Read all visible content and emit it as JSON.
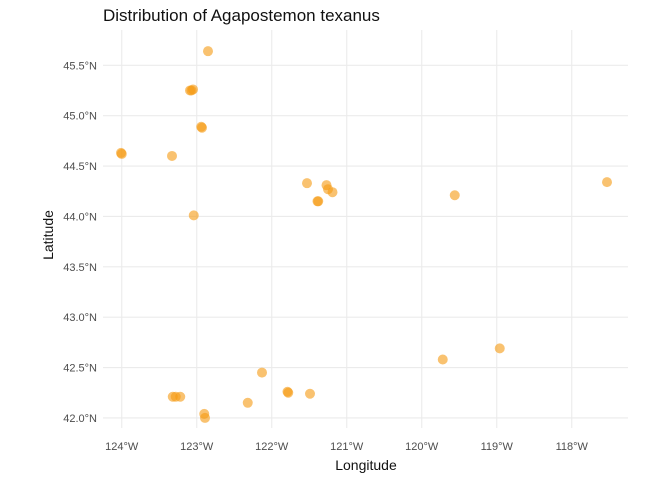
{
  "chart_data": {
    "type": "scatter",
    "title": "Distribution of Agapostemon texanus",
    "xlabel": "Longitude",
    "ylabel": "Latitude",
    "xlim": [
      -124.25,
      -117.25
    ],
    "ylim": [
      41.9,
      45.85
    ],
    "x_ticks": [
      {
        "value": -124,
        "label": "124°W"
      },
      {
        "value": -123,
        "label": "123°W"
      },
      {
        "value": -122,
        "label": "122°W"
      },
      {
        "value": -121,
        "label": "121°W"
      },
      {
        "value": -120,
        "label": "120°W"
      },
      {
        "value": -119,
        "label": "119°W"
      },
      {
        "value": -118,
        "label": "118°W"
      }
    ],
    "y_ticks": [
      {
        "value": 42.0,
        "label": "42.0°N"
      },
      {
        "value": 42.5,
        "label": "42.5°N"
      },
      {
        "value": 43.0,
        "label": "43.0°N"
      },
      {
        "value": 43.5,
        "label": "43.5°N"
      },
      {
        "value": 44.0,
        "label": "44.0°N"
      },
      {
        "value": 44.5,
        "label": "44.5°N"
      },
      {
        "value": 45.0,
        "label": "45.0°N"
      },
      {
        "value": 45.5,
        "label": "45.5°N"
      }
    ],
    "grid": true,
    "legend": "none",
    "color": "#f59a10",
    "points": [
      {
        "x": -122.85,
        "y": 45.64
      },
      {
        "x": -123.09,
        "y": 45.25
      },
      {
        "x": -123.05,
        "y": 45.26
      },
      {
        "x": -123.07,
        "y": 45.25
      },
      {
        "x": -122.94,
        "y": 44.89
      },
      {
        "x": -122.93,
        "y": 44.88
      },
      {
        "x": -124.0,
        "y": 44.62
      },
      {
        "x": -124.01,
        "y": 44.63
      },
      {
        "x": -123.33,
        "y": 44.6
      },
      {
        "x": -123.04,
        "y": 44.01
      },
      {
        "x": -121.53,
        "y": 44.33
      },
      {
        "x": -121.27,
        "y": 44.31
      },
      {
        "x": -121.25,
        "y": 44.27
      },
      {
        "x": -121.19,
        "y": 44.24
      },
      {
        "x": -121.39,
        "y": 44.15
      },
      {
        "x": -121.38,
        "y": 44.15
      },
      {
        "x": -119.56,
        "y": 44.21
      },
      {
        "x": -117.53,
        "y": 44.34
      },
      {
        "x": -119.72,
        "y": 42.58
      },
      {
        "x": -118.96,
        "y": 42.69
      },
      {
        "x": -122.13,
        "y": 42.45
      },
      {
        "x": -121.79,
        "y": 42.26
      },
      {
        "x": -121.78,
        "y": 42.25
      },
      {
        "x": -121.49,
        "y": 42.24
      },
      {
        "x": -123.32,
        "y": 42.21
      },
      {
        "x": -123.28,
        "y": 42.21
      },
      {
        "x": -123.22,
        "y": 42.21
      },
      {
        "x": -122.32,
        "y": 42.15
      },
      {
        "x": -122.9,
        "y": 42.04
      },
      {
        "x": -122.89,
        "y": 42.0
      }
    ]
  }
}
